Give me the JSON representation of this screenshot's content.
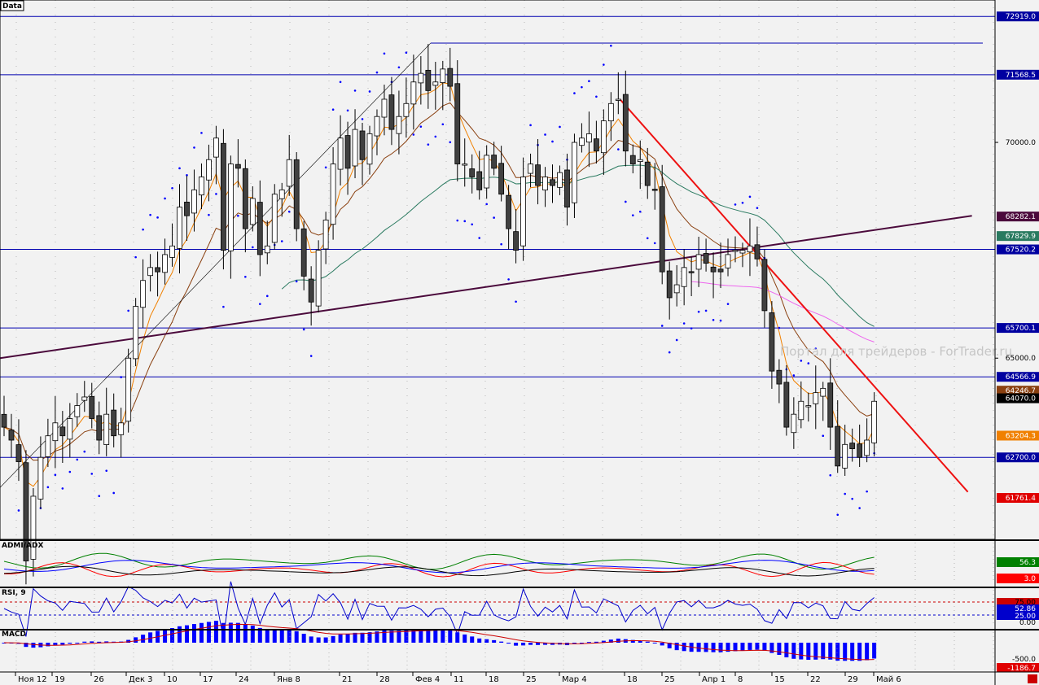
{
  "window": {
    "data_button_label": "Data"
  },
  "watermark": "Портал для трейдеров - ForTrader.ru",
  "price_axis": {
    "ticks": [
      "72919.0",
      "71568.5",
      "70000.0",
      "68282.1",
      "67829.9",
      "67520.2",
      "65700.1",
      "65000.0",
      "64566.9",
      "64246.7",
      "64070.0",
      "63204.3",
      "62700.0",
      "61761.4"
    ]
  },
  "indicators": {
    "adx": {
      "label": "ADMI/ADX",
      "values": [
        "56.3",
        "3.0"
      ],
      "colors": [
        "#008000",
        "#ff0000"
      ]
    },
    "rsi": {
      "label": "RSI, 9",
      "levels": [
        "75.00",
        "52.86",
        "25.00",
        "0.00"
      ]
    },
    "macd": {
      "label": "MACD",
      "values": [
        "-500.0",
        "-1186.7"
      ]
    }
  },
  "time_axis": {
    "labels": [
      "Ноя 12",
      "19",
      "26",
      "Дек 3",
      "10",
      "17",
      "24",
      "Янв 8",
      "21",
      "28",
      "Фев 4",
      "11",
      "18",
      "25",
      "Мар 4",
      "18",
      "25",
      "Апр 1",
      "8",
      "15",
      "22",
      "29",
      "Май 6"
    ]
  },
  "colors": {
    "bull": "#ffffff",
    "bear": "#404040",
    "hline": "#0000b0",
    "trend_red": "#ee1111",
    "trend_purple": "#4b0a3c",
    "ma_fast": "#f08000",
    "ma_mid": "#8a4010",
    "ma_slow": "#2a7a60",
    "ma_long": "#ee66ee",
    "sar": "#0000ff"
  },
  "chart_data": {
    "type": "candlestick",
    "price_range": [
      60800,
      73300
    ],
    "horizontal_levels": [
      72919.0,
      71568.5,
      67520.2,
      65700.1,
      64566.9,
      62700.0
    ],
    "tags": [
      {
        "value": 72919.0,
        "text": "72919.0",
        "bg": "#0000a0",
        "fg": "#ffffff"
      },
      {
        "value": 71568.5,
        "text": "71568.5",
        "bg": "#0000a0",
        "fg": "#ffffff"
      },
      {
        "value": 68282.1,
        "text": "68282.1",
        "bg": "#4b0a3c",
        "fg": "#ffffff"
      },
      {
        "value": 67829.9,
        "text": "67829.9",
        "bg": "#2a7a60",
        "fg": "#ffffff"
      },
      {
        "value": 67520.2,
        "text": "67520.2",
        "bg": "#0000a0",
        "fg": "#ffffff"
      },
      {
        "value": 65700.1,
        "text": "65700.1",
        "bg": "#0000a0",
        "fg": "#ffffff"
      },
      {
        "value": 64566.9,
        "text": "64566.9",
        "bg": "#0000a0",
        "fg": "#ffffff"
      },
      {
        "value": 64246.7,
        "text": "64246.7",
        "bg": "#8a4010",
        "fg": "#ffffff"
      },
      {
        "value": 64070.0,
        "text": "64070.0",
        "bg": "#000000",
        "fg": "#ffffff"
      },
      {
        "value": 63204.3,
        "text": "63204.3",
        "bg": "#f08000",
        "fg": "#ffffff"
      },
      {
        "value": 62700.0,
        "text": "62700.0",
        "bg": "#0000a0",
        "fg": "#ffffff"
      },
      {
        "value": 61761.4,
        "text": "61761.4",
        "bg": "#e00000",
        "fg": "#ffffff"
      }
    ],
    "plain_ticks": [
      {
        "value": 70000.0,
        "text": "70000.0"
      },
      {
        "value": 65000.0,
        "text": "65000.0"
      }
    ],
    "closes": [
      63400,
      63100,
      62600,
      60300,
      61800,
      62700,
      63200,
      63500,
      63200,
      63600,
      63900,
      64100,
      63600,
      63100,
      63700,
      63200,
      63500,
      65000,
      66200,
      66800,
      67100,
      67000,
      67400,
      67600,
      68500,
      68300,
      68900,
      69200,
      69600,
      70100,
      67500,
      69500,
      69400,
      68000,
      68700,
      67400,
      67600,
      68800,
      68900,
      69600,
      68000,
      66900,
      66300,
      67500,
      68200,
      69500,
      70100,
      69400,
      70300,
      69600,
      70200,
      70600,
      71000,
      70300,
      70600,
      70900,
      71400,
      71600,
      71200,
      71400,
      71700,
      71300,
      69500,
      69500,
      69200,
      68900,
      69700,
      69400,
      68800,
      68000,
      67500,
      69200,
      69500,
      69000,
      69200,
      69000,
      69300,
      68500,
      70000,
      70100,
      70200,
      69800,
      70500,
      70900,
      71000,
      69800,
      69500,
      69600,
      69000,
      68900,
      67000,
      66400,
      66700,
      67100,
      67000,
      67400,
      67200,
      67000,
      67000,
      67400,
      67500,
      67500,
      67600,
      67300,
      66100,
      64700,
      64400,
      63400,
      63700,
      64000,
      63900,
      64200,
      64300,
      63400,
      62500,
      63000,
      62900,
      62700,
      63100,
      64000
    ]
  }
}
